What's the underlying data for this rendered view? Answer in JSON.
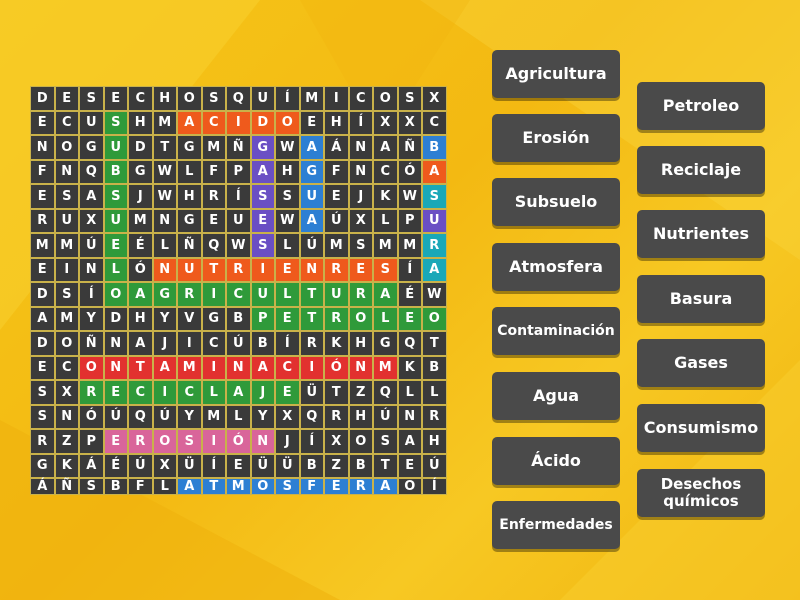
{
  "colors": {
    "cell_default": "#3a3a3a",
    "orange": "#ef5a1c",
    "green": "#2f9a3a",
    "blue": "#2d7fd3",
    "teal": "#1aa8b8",
    "purple": "#6a4fc4",
    "red": "#e2312f",
    "pink": "#d9659a",
    "lime": "#7cc42a",
    "word_button": "#4a4a4a"
  },
  "grid_rows": [
    [
      "D",
      "E",
      "S",
      "E",
      "C",
      "H",
      "O",
      "S",
      "Q",
      "U",
      "Í",
      "M",
      "I",
      "C",
      "O",
      "S",
      "X"
    ],
    [
      "E",
      "C",
      "U",
      "S",
      "H",
      "M",
      "A",
      "C",
      "I",
      "D",
      "O",
      "E",
      "H",
      "Í",
      "X",
      "X",
      "C"
    ],
    [
      "N",
      "O",
      "G",
      "U",
      "D",
      "T",
      "G",
      "M",
      "Ñ",
      "G",
      "W",
      "A",
      "Á",
      "N",
      "A",
      "Ñ",
      "B"
    ],
    [
      "F",
      "N",
      "Q",
      "B",
      "G",
      "W",
      "L",
      "F",
      "P",
      "A",
      "H",
      "G",
      "F",
      "N",
      "C",
      "Ó",
      "A"
    ],
    [
      "E",
      "S",
      "A",
      "S",
      "J",
      "W",
      "H",
      "R",
      "Í",
      "S",
      "S",
      "U",
      "E",
      "J",
      "K",
      "W",
      "S"
    ],
    [
      "R",
      "U",
      "X",
      "U",
      "M",
      "N",
      "G",
      "E",
      "U",
      "E",
      "W",
      "A",
      "Ú",
      "X",
      "L",
      "P",
      "U"
    ],
    [
      "M",
      "M",
      "Ú",
      "E",
      "É",
      "L",
      "Ñ",
      "Q",
      "W",
      "S",
      "L",
      "Ú",
      "M",
      "S",
      "M",
      "M",
      "R"
    ],
    [
      "E",
      "I",
      "N",
      "L",
      "Ó",
      "N",
      "U",
      "T",
      "R",
      "I",
      "E",
      "N",
      "R",
      "E",
      "S",
      "Í",
      "A"
    ],
    [
      "D",
      "S",
      "Í",
      "O",
      "A",
      "G",
      "R",
      "I",
      "C",
      "U",
      "L",
      "T",
      "U",
      "R",
      "A",
      "É",
      "W"
    ],
    [
      "A",
      "M",
      "Y",
      "D",
      "H",
      "Y",
      "V",
      "G",
      "B",
      "P",
      "E",
      "T",
      "R",
      "O",
      "L",
      "E",
      "O"
    ],
    [
      "D",
      "O",
      "Ñ",
      "N",
      "A",
      "J",
      "I",
      "C",
      "Ú",
      "B",
      "Í",
      "R",
      "K",
      "H",
      "G",
      "Q",
      "T"
    ],
    [
      "E",
      "C",
      "O",
      "N",
      "T",
      "A",
      "M",
      "I",
      "N",
      "A",
      "C",
      "I",
      "Ó",
      "N",
      "M",
      "K",
      "B"
    ],
    [
      "S",
      "X",
      "R",
      "E",
      "C",
      "I",
      "C",
      "L",
      "A",
      "J",
      "E",
      "Ü",
      "T",
      "Z",
      "Q",
      "L",
      "L"
    ],
    [
      "S",
      "N",
      "Ó",
      "Ú",
      "Q",
      "Ú",
      "Y",
      "M",
      "L",
      "Y",
      "X",
      "Q",
      "R",
      "H",
      "Ú",
      "N",
      "R"
    ],
    [
      "R",
      "Z",
      "P",
      "E",
      "R",
      "O",
      "S",
      "I",
      "Ó",
      "N",
      "J",
      "Í",
      "X",
      "O",
      "S",
      "A",
      "H"
    ],
    [
      "G",
      "K",
      "Á",
      "É",
      "Ú",
      "X",
      "Ü",
      "Í",
      "E",
      "Ü",
      "Ü",
      "B",
      "Z",
      "B",
      "T",
      "E",
      "Ú"
    ],
    [
      "Á",
      "Ñ",
      "S",
      "B",
      "F",
      "L",
      "A",
      "T",
      "M",
      "O",
      "S",
      "F",
      "E",
      "R",
      "A",
      "O",
      "Í"
    ]
  ],
  "word_list": [
    "Agricultura",
    "Petroleo",
    "Erosión",
    "Reciclaje",
    "Subsuelo",
    "Nutrientes",
    "Atmosfera",
    "Basura",
    "Contaminación",
    "Gases",
    "Agua",
    "Consumismo",
    "Ácido",
    "Desechos químicos",
    "Enfermedades"
  ]
}
